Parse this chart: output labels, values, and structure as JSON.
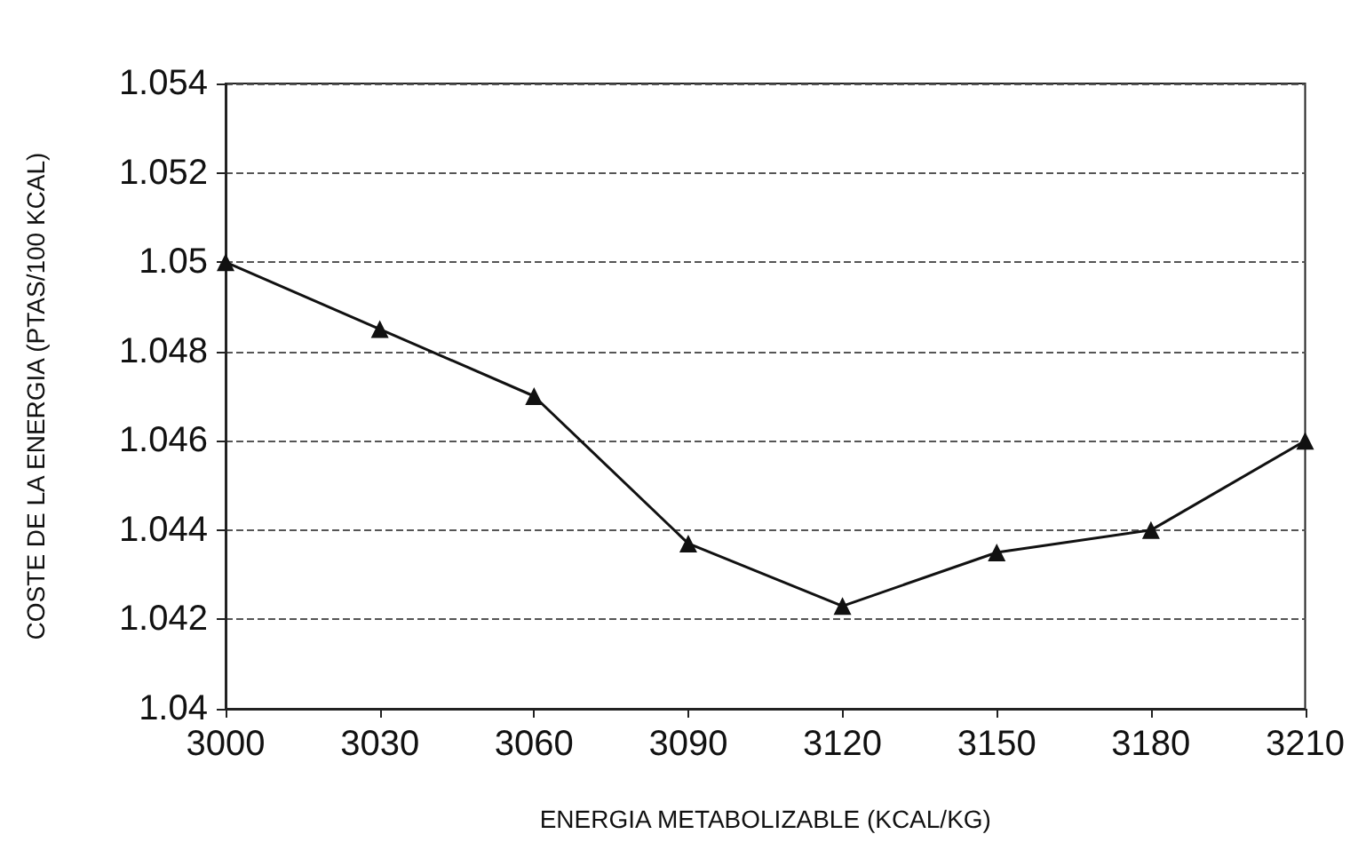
{
  "chart_data": {
    "type": "line",
    "xlabel": "ENERGIA METABOLIZABLE (KCAL/KG)",
    "ylabel": "COSTE DE LA ENERGIA (PTAS/100 KCAL)",
    "x": [
      3000,
      3030,
      3060,
      3090,
      3120,
      3150,
      3180,
      3210
    ],
    "series": [
      {
        "color": "#111111",
        "values": [
          1.05,
          1.0485,
          1.047,
          1.0437,
          1.0423,
          1.0435,
          1.044,
          1.046
        ]
      }
    ],
    "xlim": [
      3000,
      3210
    ],
    "xticks": [
      3000,
      3030,
      3060,
      3090,
      3120,
      3150,
      3180,
      3210
    ],
    "ylim": [
      1.04,
      1.054
    ],
    "yticks": [
      1.04,
      1.042,
      1.044,
      1.046,
      1.048,
      1.05,
      1.052,
      1.054
    ],
    "grid": "y",
    "marker": "triangle",
    "line_style": "solid"
  }
}
